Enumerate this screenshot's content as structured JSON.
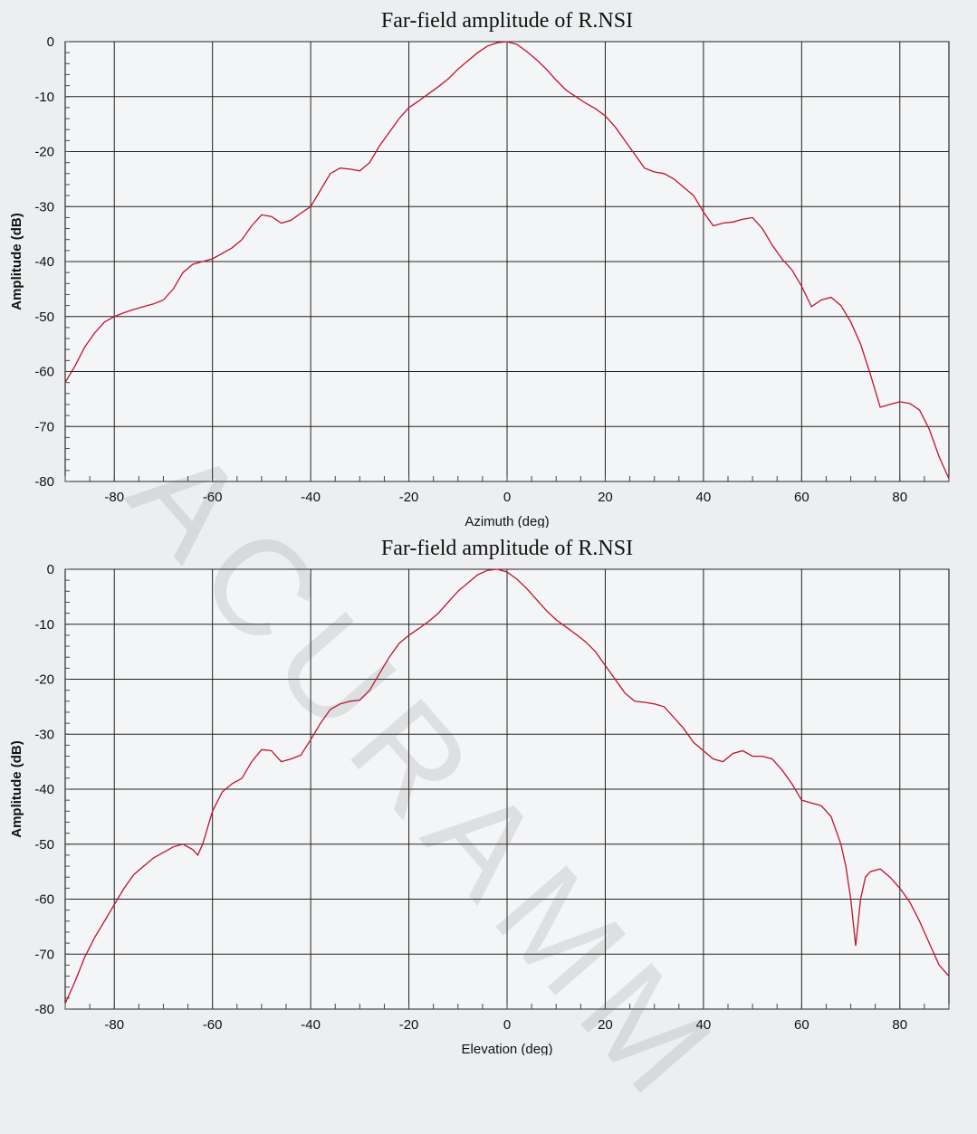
{
  "chart_data": [
    {
      "type": "line",
      "title": "Far-field amplitude of R.NSI",
      "xlabel": "Azimuth (deg)",
      "ylabel": "Amplitude (dB)",
      "xlim": [
        -90,
        90
      ],
      "ylim": [
        -80,
        0
      ],
      "xticks": [
        -80,
        -60,
        -40,
        -20,
        0,
        20,
        40,
        60,
        80
      ],
      "yticks": [
        0,
        -10,
        -20,
        -30,
        -40,
        -50,
        -60,
        -70,
        -80
      ],
      "grid": true,
      "line_color": "#c0142a",
      "series": [
        {
          "x": [
            -90,
            -88,
            -86,
            -84,
            -82,
            -80,
            -78,
            -76,
            -74,
            -72,
            -70,
            -68,
            -66,
            -64,
            -62,
            -60,
            -58,
            -56,
            -54,
            -52,
            -50,
            -48,
            -46,
            -44,
            -42,
            -40,
            -38,
            -36,
            -34,
            -32,
            -30,
            -28,
            -26,
            -24,
            -22,
            -20,
            -18,
            -16,
            -14,
            -12,
            -10,
            -8,
            -6,
            -4,
            -2,
            0,
            2,
            4,
            6,
            8,
            10,
            12,
            14,
            16,
            18,
            20,
            22,
            24,
            26,
            28,
            30,
            32,
            34,
            36,
            38,
            40,
            42,
            44,
            46,
            48,
            50,
            52,
            54,
            56,
            58,
            60,
            62,
            64,
            66,
            68,
            70,
            72,
            74,
            76,
            78,
            80,
            82,
            84,
            86,
            88,
            90
          ],
          "y": [
            -62,
            -59,
            -55.5,
            -53,
            -51,
            -50,
            -49.3,
            -48.7,
            -48.2,
            -47.7,
            -47,
            -45,
            -42,
            -40.5,
            -40,
            -39.5,
            -38.5,
            -37.5,
            -36,
            -33.5,
            -31.5,
            -31.8,
            -33,
            -32.5,
            -31.2,
            -30,
            -27,
            -24,
            -23,
            -23.2,
            -23.5,
            -22,
            -19,
            -16.5,
            -14,
            -12,
            -10.8,
            -9.5,
            -8.2,
            -6.8,
            -5,
            -3.5,
            -2,
            -0.8,
            -0.2,
            0,
            -0.5,
            -1.8,
            -3.3,
            -5,
            -7,
            -8.8,
            -10,
            -11.2,
            -12.2,
            -13.5,
            -15.5,
            -18,
            -20.5,
            -23,
            -23.7,
            -24,
            -25,
            -26.5,
            -28,
            -31,
            -33.5,
            -33,
            -32.8,
            -32.3,
            -32,
            -34,
            -37,
            -39.5,
            -41.5,
            -44.5,
            -48.2,
            -47,
            -46.5,
            -48,
            -51,
            -55,
            -60.5,
            -66.5,
            -66,
            -65.5,
            -65.8,
            -67,
            -70.5,
            -75.5,
            -79.5
          ]
        }
      ]
    },
    {
      "type": "line",
      "title": "Far-field amplitude of R.NSI",
      "xlabel": "Elevation (deg)",
      "ylabel": "Amplitude (dB)",
      "xlim": [
        -90,
        90
      ],
      "ylim": [
        -80,
        0
      ],
      "xticks": [
        -80,
        -60,
        -40,
        -20,
        0,
        20,
        40,
        60,
        80
      ],
      "yticks": [
        0,
        -10,
        -20,
        -30,
        -40,
        -50,
        -60,
        -70,
        -80
      ],
      "grid": true,
      "line_color": "#c0142a",
      "series": [
        {
          "x": [
            -90,
            -88,
            -86,
            -84,
            -82,
            -80,
            -78,
            -76,
            -74,
            -72,
            -70,
            -68,
            -66,
            -64,
            -63,
            -62,
            -60,
            -58,
            -56,
            -54,
            -52,
            -50,
            -48,
            -46,
            -44,
            -42,
            -40,
            -38,
            -36,
            -34,
            -32,
            -30,
            -28,
            -26,
            -24,
            -22,
            -20,
            -18,
            -16,
            -14,
            -12,
            -10,
            -8,
            -6,
            -4,
            -2,
            0,
            2,
            4,
            6,
            8,
            10,
            12,
            14,
            16,
            18,
            20,
            22,
            24,
            26,
            28,
            30,
            32,
            34,
            36,
            38,
            40,
            42,
            44,
            46,
            48,
            50,
            52,
            54,
            56,
            58,
            60,
            62,
            64,
            66,
            68,
            69,
            70,
            71,
            72,
            73,
            74,
            76,
            78,
            80,
            82,
            84,
            86,
            88,
            90
          ],
          "y": [
            -79,
            -75,
            -70.5,
            -67,
            -64,
            -61,
            -58,
            -55.5,
            -54,
            -52.5,
            -51.5,
            -50.5,
            -50,
            -51,
            -52,
            -50,
            -44,
            -40.5,
            -39,
            -38,
            -35,
            -32.8,
            -33,
            -35,
            -34.5,
            -33.8,
            -31,
            -28,
            -25.5,
            -24.5,
            -24,
            -23.8,
            -22,
            -19,
            -16,
            -13.5,
            -12,
            -10.8,
            -9.5,
            -8,
            -6,
            -4,
            -2.5,
            -1,
            -0.2,
            0,
            -0.5,
            -1.8,
            -3.5,
            -5.5,
            -7.5,
            -9.2,
            -10.5,
            -11.8,
            -13.2,
            -15,
            -17.5,
            -20,
            -22.5,
            -24,
            -24.2,
            -24.5,
            -25,
            -27,
            -29,
            -31.5,
            -33,
            -34.5,
            -35,
            -33.5,
            -33,
            -34,
            -34,
            -34.5,
            -36.5,
            -39,
            -42,
            -42.5,
            -43,
            -45,
            -50,
            -54,
            -60,
            -68.5,
            -60,
            -56,
            -55,
            -54.5,
            -56,
            -58,
            -60.5,
            -64,
            -68,
            -72,
            -74
          ]
        }
      ]
    }
  ],
  "watermark": "ACURAMM"
}
